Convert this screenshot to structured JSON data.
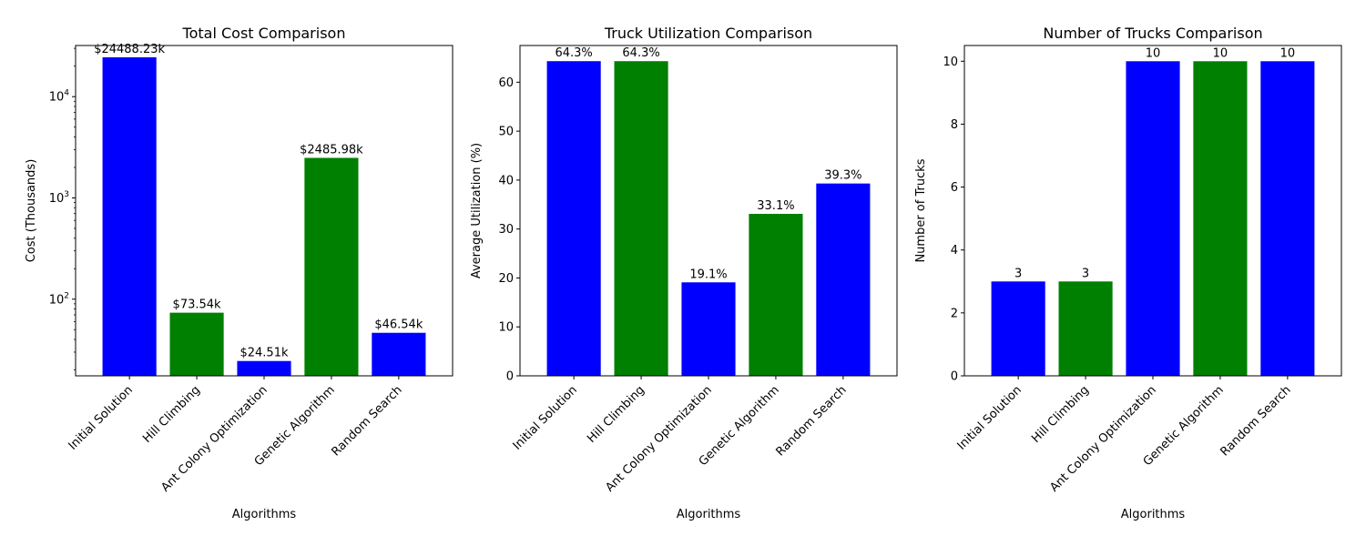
{
  "figure": {
    "background": "#ffffff"
  },
  "chart_data": [
    {
      "type": "bar",
      "title": "Total Cost Comparison",
      "xlabel": "Algorithms",
      "ylabel": "Cost (Thousands)",
      "yscale": "log",
      "ylim": [
        17.5,
        32000
      ],
      "yticks": [
        {
          "value": 100,
          "base": "10",
          "exp": "2"
        },
        {
          "value": 1000,
          "base": "10",
          "exp": "3"
        },
        {
          "value": 10000,
          "base": "10",
          "exp": "4"
        }
      ],
      "categories": [
        "Initial Solution",
        "Hill Climbing",
        "Ant Colony Optimization",
        "Genetic Algorithm",
        "Random Search"
      ],
      "values": [
        24488.23,
        73.54,
        24.51,
        2485.98,
        46.54
      ],
      "data_labels": [
        "$24488.23k",
        "$73.54k",
        "$24.51k",
        "$2485.98k",
        "$46.54k"
      ],
      "colors": [
        "#0000ff",
        "#008000",
        "#0000ff",
        "#008000",
        "#0000ff"
      ],
      "grid": false
    },
    {
      "type": "bar",
      "title": "Truck Utilization Comparison",
      "xlabel": "Algorithms",
      "ylabel": "Average Utilization (%)",
      "yscale": "linear",
      "ylim": [
        0,
        67.5
      ],
      "yticks": [
        {
          "value": 0,
          "label": "0"
        },
        {
          "value": 10,
          "label": "10"
        },
        {
          "value": 20,
          "label": "20"
        },
        {
          "value": 30,
          "label": "30"
        },
        {
          "value": 40,
          "label": "40"
        },
        {
          "value": 50,
          "label": "50"
        },
        {
          "value": 60,
          "label": "60"
        }
      ],
      "categories": [
        "Initial Solution",
        "Hill Climbing",
        "Ant Colony Optimization",
        "Genetic Algorithm",
        "Random Search"
      ],
      "values": [
        64.3,
        64.3,
        19.1,
        33.1,
        39.3
      ],
      "data_labels": [
        "64.3%",
        "64.3%",
        "19.1%",
        "33.1%",
        "39.3%"
      ],
      "colors": [
        "#0000ff",
        "#008000",
        "#0000ff",
        "#008000",
        "#0000ff"
      ],
      "grid": false
    },
    {
      "type": "bar",
      "title": "Number of Trucks Comparison",
      "xlabel": "Algorithms",
      "ylabel": "Number of Trucks",
      "yscale": "linear",
      "ylim": [
        0,
        10.5
      ],
      "yticks": [
        {
          "value": 0,
          "label": "0"
        },
        {
          "value": 2,
          "label": "2"
        },
        {
          "value": 4,
          "label": "4"
        },
        {
          "value": 6,
          "label": "6"
        },
        {
          "value": 8,
          "label": "8"
        },
        {
          "value": 10,
          "label": "10"
        }
      ],
      "categories": [
        "Initial Solution",
        "Hill Climbing",
        "Ant Colony Optimization",
        "Genetic Algorithm",
        "Random Search"
      ],
      "values": [
        3,
        3,
        10,
        10,
        10
      ],
      "data_labels": [
        "3",
        "3",
        "10",
        "10",
        "10"
      ],
      "colors": [
        "#0000ff",
        "#008000",
        "#0000ff",
        "#008000",
        "#0000ff"
      ],
      "grid": false
    }
  ]
}
